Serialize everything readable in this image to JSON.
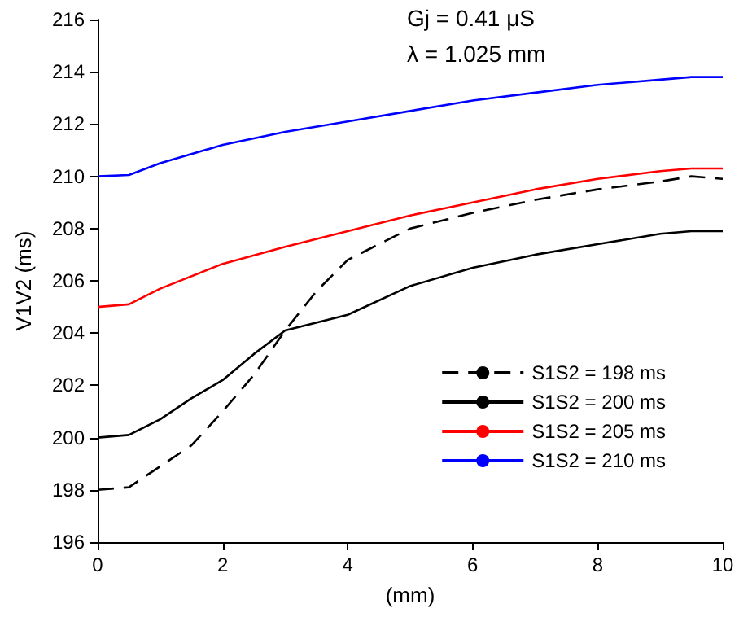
{
  "chart_data": {
    "type": "line",
    "xlabel": "(mm)",
    "ylabel": "V1V2 (ms)",
    "annotations": [
      "Gj = 0.41 μS",
      "λ = 1.025 mm"
    ],
    "xlim": [
      0,
      10
    ],
    "xticks": [
      0,
      2,
      4,
      6,
      8,
      10
    ],
    "ylim": [
      196,
      216
    ],
    "yticks": [
      196,
      198,
      200,
      202,
      204,
      206,
      208,
      210,
      212,
      214,
      216
    ],
    "grid": false,
    "legend": "bottom right",
    "marker": "none",
    "series": [
      {
        "name": "S1S2 = 198 ms",
        "color": "#000000",
        "line_style": "dashed",
        "x": [
          0,
          0.5,
          1,
          1.5,
          2,
          2.5,
          3,
          3.5,
          4,
          5,
          6,
          7,
          8,
          9,
          9.5,
          10
        ],
        "values": [
          198,
          198.1,
          198.9,
          199.7,
          201,
          202.4,
          204.1,
          205.6,
          206.8,
          208,
          208.6,
          209.1,
          209.5,
          209.8,
          210,
          209.9
        ]
      },
      {
        "name": "S1S2 = 200 ms",
        "color": "#000000",
        "line_style": "solid",
        "x": [
          0,
          0.5,
          1,
          1.5,
          2,
          2.5,
          3,
          4,
          5,
          6,
          7,
          8,
          9,
          9.5,
          10
        ],
        "values": [
          200,
          200.1,
          200.7,
          201.5,
          202.2,
          203.2,
          204.1,
          204.7,
          205.8,
          206.5,
          207,
          207.4,
          207.8,
          207.9,
          207.9
        ]
      },
      {
        "name": "S1S2 = 205 ms",
        "color": "#ff0000",
        "line_style": "solid",
        "x": [
          0,
          0.5,
          1,
          2,
          3,
          4,
          5,
          6,
          7,
          8,
          9,
          9.5,
          10
        ],
        "values": [
          205,
          205.1,
          205.7,
          206.65,
          207.3,
          207.9,
          208.5,
          209,
          209.5,
          209.9,
          210.2,
          210.3,
          210.3
        ]
      },
      {
        "name": "S1S2 = 210 ms",
        "color": "#0000ff",
        "line_style": "solid",
        "x": [
          0,
          0.5,
          1,
          2,
          3,
          4,
          5,
          6,
          7,
          8,
          9,
          9.5,
          10
        ],
        "values": [
          210,
          210.05,
          210.5,
          211.2,
          211.7,
          212.1,
          212.5,
          212.9,
          213.2,
          213.5,
          213.7,
          213.8,
          213.8
        ]
      }
    ]
  }
}
